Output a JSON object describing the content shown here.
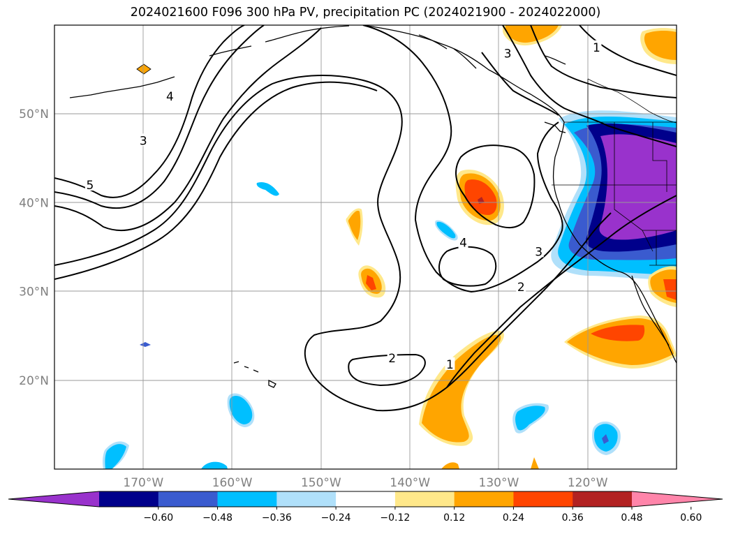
{
  "title": "2024021600 F096 300 hPa PV, precipitation PC (2024021900 - 2024022000)",
  "map": {
    "lon_range": [
      -180,
      -110
    ],
    "lat_range": [
      10,
      60
    ],
    "lat_ticks": [
      {
        "lat": 20,
        "label": "20°N"
      },
      {
        "lat": 30,
        "label": "30°N"
      },
      {
        "lat": 40,
        "label": "40°N"
      },
      {
        "lat": 50,
        "label": "50°N"
      }
    ],
    "lon_ticks": [
      {
        "lon": -170,
        "label": "170°W"
      },
      {
        "lon": -160,
        "label": "160°W"
      },
      {
        "lon": -150,
        "label": "150°W"
      },
      {
        "lon": -140,
        "label": "140°W"
      },
      {
        "lon": -130,
        "label": "130°W"
      },
      {
        "lon": -120,
        "label": "120°W"
      }
    ],
    "gridlines": true,
    "pv_contour_labels": [
      {
        "value": "5",
        "lon": -176,
        "lat": 42
      },
      {
        "value": "4",
        "lon": -167,
        "lat": 52
      },
      {
        "value": "3",
        "lon": -170,
        "lat": 47
      },
      {
        "value": "4",
        "lon": -134,
        "lat": 35.5
      },
      {
        "value": "2",
        "lon": -142,
        "lat": 22.5
      },
      {
        "value": "1",
        "lon": -135.5,
        "lat": 21.8
      },
      {
        "value": "2",
        "lon": -127.5,
        "lat": 30.5
      },
      {
        "value": "3",
        "lon": -125.5,
        "lat": 34.5
      },
      {
        "value": "1",
        "lon": -119,
        "lat": 57.5
      },
      {
        "value": "3",
        "lon": -129,
        "lat": 56.8
      }
    ]
  },
  "colorbar": {
    "colors": [
      "#9932cc",
      "#00008b",
      "#3a5bcf",
      "#00bfff",
      "#b0e0fa",
      "#ffffff",
      "#ffe88a",
      "#ffa500",
      "#ff4500",
      "#b22222",
      "#ff85aa"
    ],
    "labels": [
      "−0.60",
      "−0.48",
      "−0.36",
      "−0.24",
      "−0.12",
      "0.12",
      "0.24",
      "0.36",
      "0.48",
      "0.60"
    ]
  }
}
